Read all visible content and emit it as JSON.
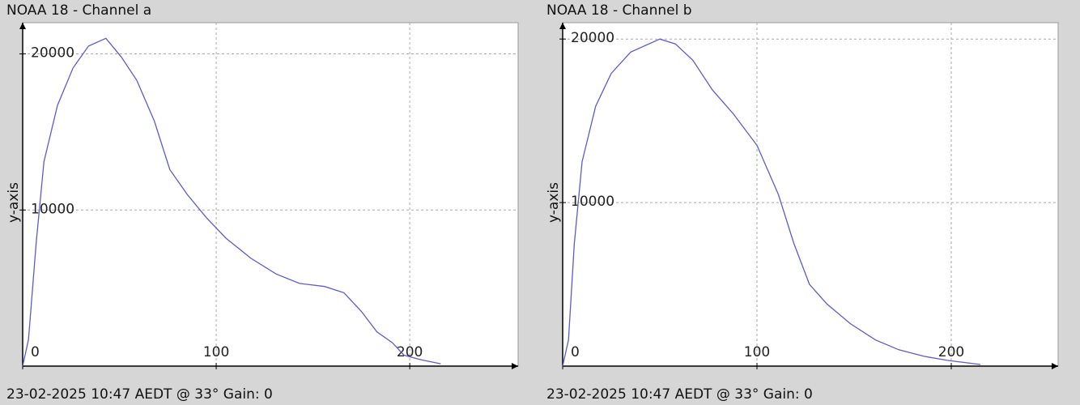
{
  "chart_data": [
    {
      "type": "line",
      "title": "NOAA 18 - Channel a",
      "ylabel": "y-axis",
      "footer": "23-02-2025 10:47 AEDT @ 33° Gain: 0",
      "x": [
        0,
        3,
        7,
        11,
        18,
        26,
        34,
        43,
        51,
        59,
        68,
        76,
        85,
        95,
        105,
        118,
        131,
        143,
        156,
        166,
        175,
        183,
        191,
        197,
        206,
        216
      ],
      "values": [
        0,
        1700,
        7900,
        13100,
        16700,
        19100,
        20500,
        21000,
        19800,
        18300,
        15700,
        12600,
        11000,
        9500,
        8200,
        6900,
        5900,
        5300,
        5100,
        4700,
        3500,
        2200,
        1500,
        700,
        400,
        150
      ],
      "color": "#5b5bd0",
      "xlim": [
        0,
        256
      ],
      "ylim": [
        0,
        22000
      ],
      "xticks": [
        0,
        100,
        200
      ],
      "yticks": [
        10000,
        20000
      ],
      "grid": true
    },
    {
      "type": "line",
      "title": "NOAA 18 - Channel b",
      "ylabel": "y-axis",
      "footer": "23-02-2025 10:47 AEDT @ 33° Gain: 0",
      "x": [
        0,
        3,
        6,
        10,
        17,
        25,
        35,
        50,
        58,
        67,
        77,
        88,
        100,
        111,
        119,
        127,
        136,
        148,
        161,
        173,
        186,
        198,
        215
      ],
      "values": [
        0,
        1600,
        7500,
        12500,
        15900,
        17900,
        19200,
        20000,
        19700,
        18700,
        16900,
        15400,
        13500,
        10500,
        7500,
        5000,
        3800,
        2600,
        1600,
        1000,
        600,
        350,
        100
      ],
      "color": "#5b5bd0",
      "xlim": [
        0,
        255
      ],
      "ylim": [
        0,
        21000
      ],
      "xticks": [
        0,
        100,
        200
      ],
      "yticks": [
        10000,
        20000
      ],
      "grid": true
    }
  ]
}
